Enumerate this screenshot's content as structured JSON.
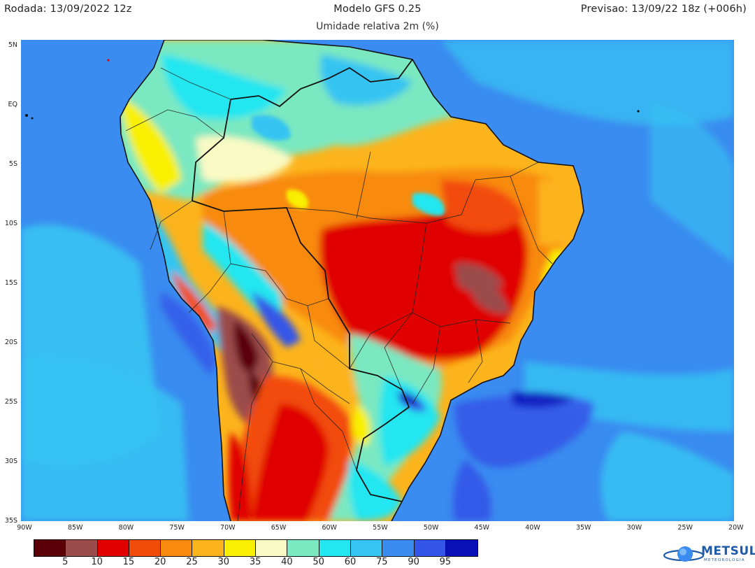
{
  "header": {
    "run_label": "Rodada: 13/09/2022 12z",
    "model_label": "Modelo GFS 0.25",
    "forecast_label": "Previsao: 13/09/22 18z (+006h)",
    "variable_label": "Umidade relativa 2m (%)"
  },
  "map": {
    "lat_labels": [
      "5N",
      "EQ",
      "5S",
      "10S",
      "15S",
      "20S",
      "25S",
      "30S",
      "35S"
    ],
    "lon_labels": [
      "90W",
      "85W",
      "80W",
      "75W",
      "70W",
      "65W",
      "60W",
      "55W",
      "50W",
      "45W",
      "40W",
      "35W",
      "30W",
      "25W",
      "20W"
    ],
    "extent": {
      "lon_min": -90,
      "lon_max": -20,
      "lat_min": -35,
      "lat_max": 5
    }
  },
  "colorbar": {
    "colors": [
      "#5c0008",
      "#9c4b4b",
      "#e00000",
      "#f24c0a",
      "#f88a10",
      "#fcb41c",
      "#f8f000",
      "#fafac4",
      "#7ae8c0",
      "#22e6f0",
      "#36c4f2",
      "#3a8cf0",
      "#3456e8",
      "#0a10b8"
    ],
    "tick_labels": [
      "5",
      "10",
      "15",
      "20",
      "25",
      "30",
      "35",
      "40",
      "50",
      "60",
      "75",
      "90",
      "95"
    ]
  },
  "logo": {
    "name": "METSUL",
    "subtitle": "METEOROLOGIA",
    "icon": "globe-swoosh-icon"
  }
}
